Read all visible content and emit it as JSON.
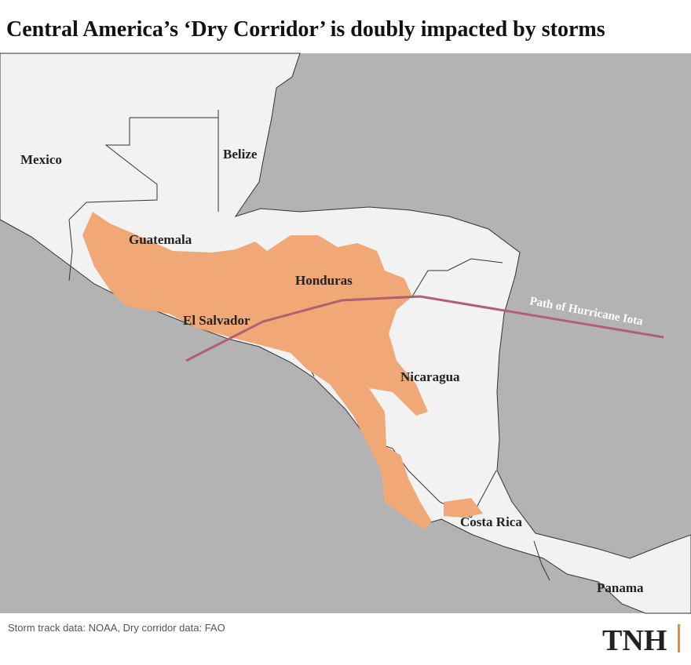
{
  "header": {
    "title": "Central America’s ‘Dry Corridor’ is doubly impacted by storms"
  },
  "map": {
    "countries": [
      "Mexico",
      "Belize",
      "Guatemala",
      "Honduras",
      "El Salvador",
      "Nicaragua",
      "Costa Rica",
      "Panama"
    ],
    "hurricane_label": "Path of Hurricane Iota"
  },
  "footer": {
    "source": "Storm track data: NOAA, Dry corridor data: FAO",
    "logo": "TNH"
  }
}
